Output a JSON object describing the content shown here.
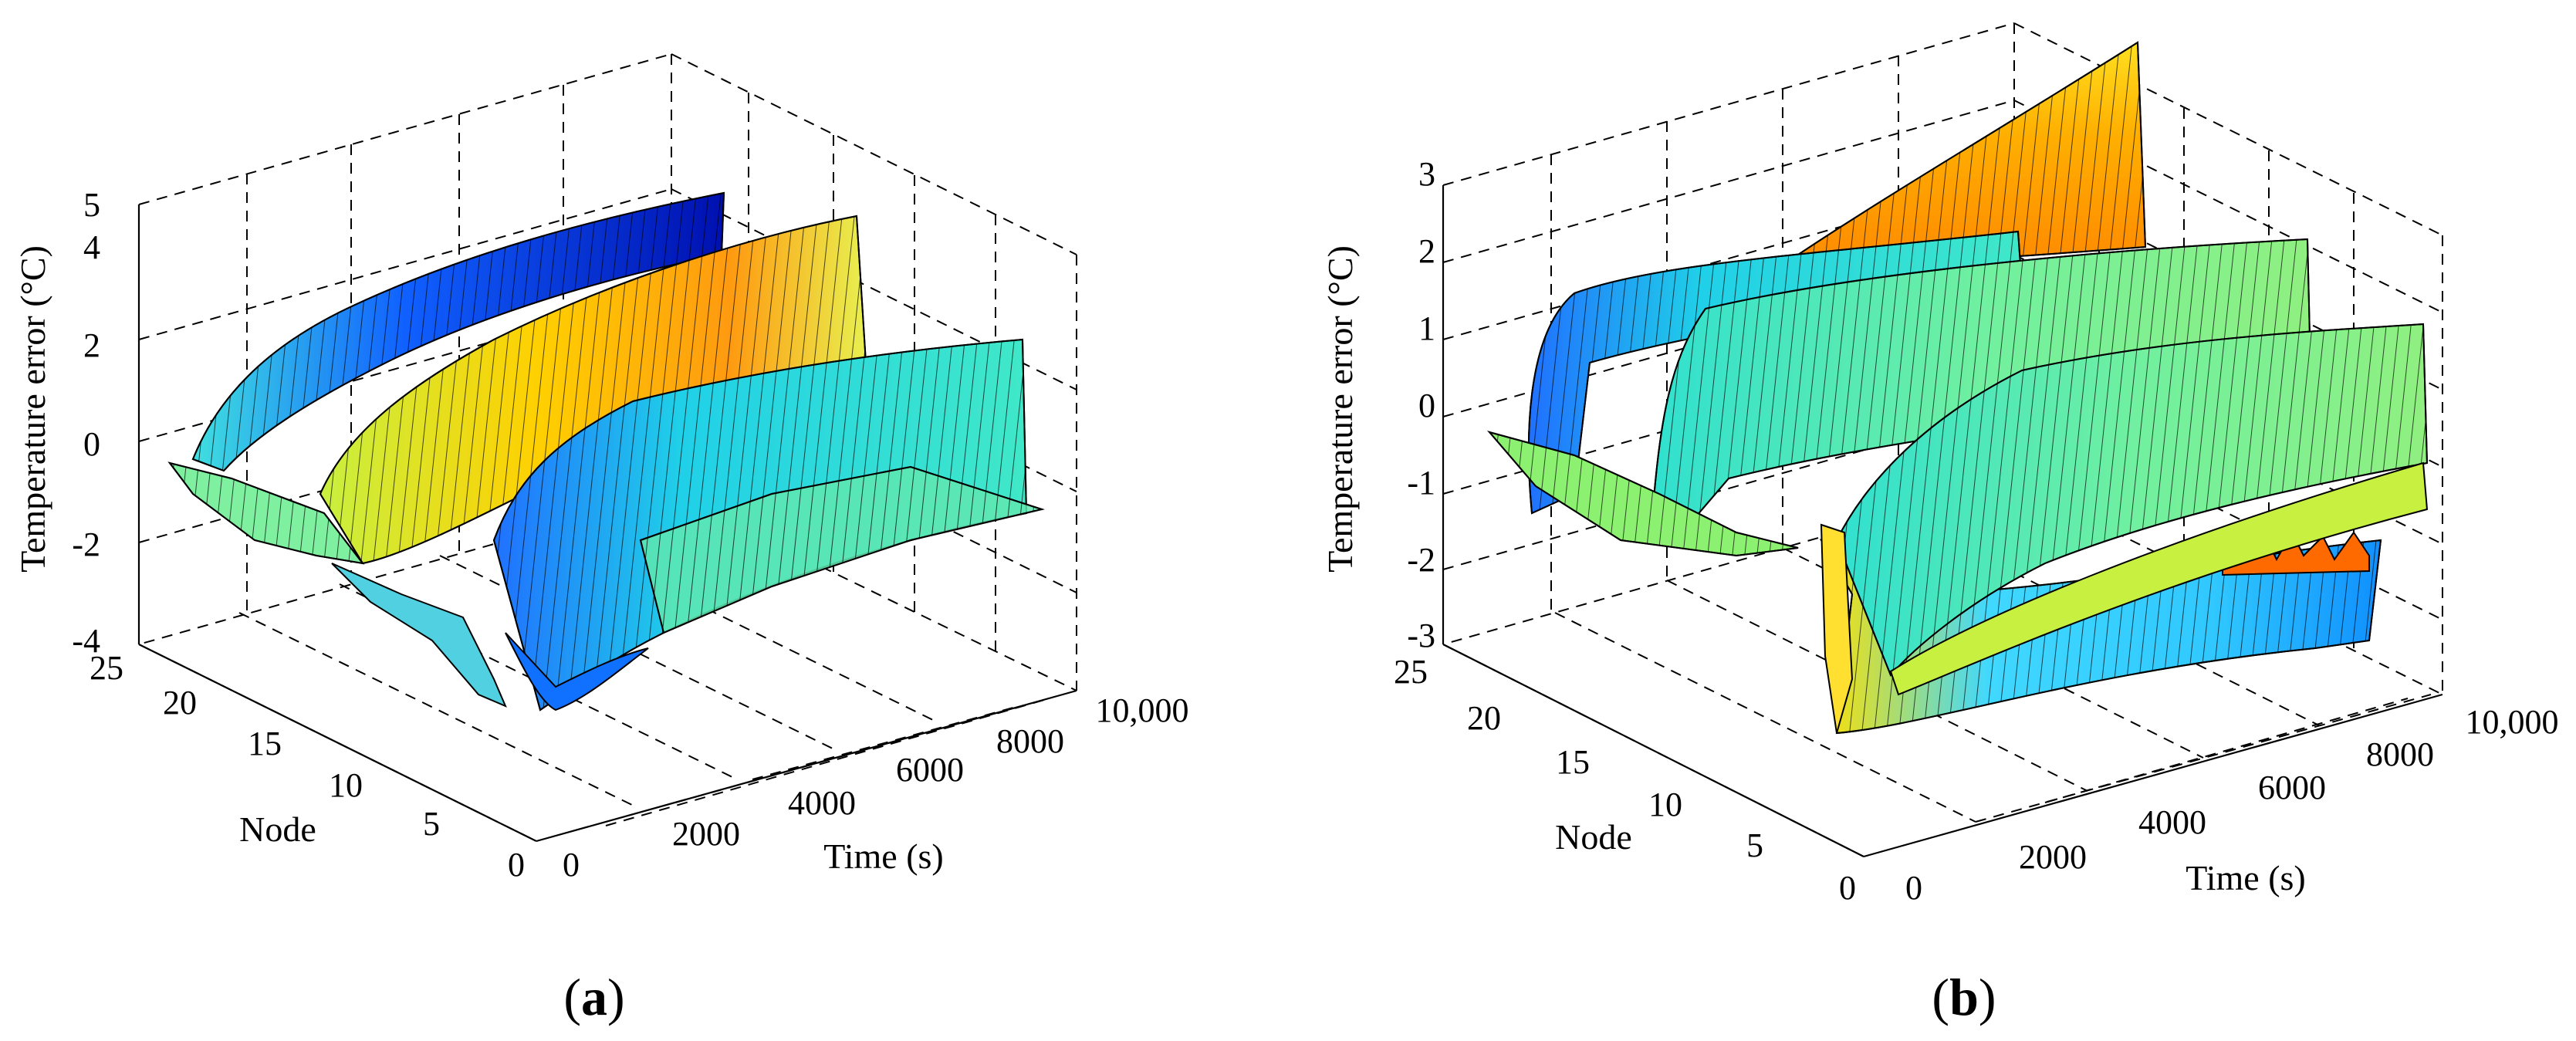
{
  "chart_data": [
    {
      "id": "a",
      "type": "surface3d",
      "panel_label": "a",
      "title": "",
      "xlabel": "Time (s)",
      "ylabel": "Node",
      "zlabel": "Temperature error (°C)",
      "xlim": [
        0,
        10000
      ],
      "ylim": [
        0,
        25
      ],
      "zlim": [
        -4,
        5
      ],
      "x_ticks": [
        "0",
        "2000",
        "4000",
        "6000",
        "8000",
        "10,000"
      ],
      "y_ticks": [
        "0",
        "5",
        "10",
        "15",
        "20",
        "25"
      ],
      "z_ticks": [
        "-4",
        "-2",
        "0",
        "2",
        "4",
        "5"
      ],
      "grid": true,
      "colormap": "jet",
      "ridges": [
        {
          "node": 20,
          "peak_error": 5,
          "min_error": -0.8,
          "settled_error": 4.6
        },
        {
          "node": 14,
          "peak_error": 4.2,
          "min_error": -1.5,
          "settled_error": 3.6
        },
        {
          "node": 8,
          "peak_error": 2.0,
          "min_error": -3.8,
          "settled_error": 1.6
        }
      ]
    },
    {
      "id": "b",
      "type": "surface3d",
      "panel_label": "b",
      "title": "",
      "xlabel": "Time (s)",
      "ylabel": "Node",
      "zlabel": "Temperature error (°C)",
      "xlim": [
        0,
        10000
      ],
      "ylim": [
        0,
        25
      ],
      "zlim": [
        -3,
        3
      ],
      "x_ticks": [
        "0",
        "2000",
        "4000",
        "6000",
        "8000",
        "10,000"
      ],
      "y_ticks": [
        "0",
        "5",
        "10",
        "15",
        "20",
        "25"
      ],
      "z_ticks": [
        "-3",
        "-2",
        "-1",
        "0",
        "1",
        "2",
        "3"
      ],
      "grid": true,
      "colormap": "jet",
      "ridges": [
        {
          "node": 20,
          "peak_error": 3.0,
          "min_error": -0.4,
          "settled_error": 3.0
        },
        {
          "node": 17,
          "peak_error": 1.6,
          "min_error": -0.5,
          "settled_error": 1.5
        },
        {
          "node": 13,
          "peak_error": 1.3,
          "min_error": -1.2,
          "settled_error": 1.2
        },
        {
          "node": 8,
          "peak_error": 0.8,
          "min_error": -2.9,
          "settled_error": 0.6
        }
      ]
    }
  ]
}
